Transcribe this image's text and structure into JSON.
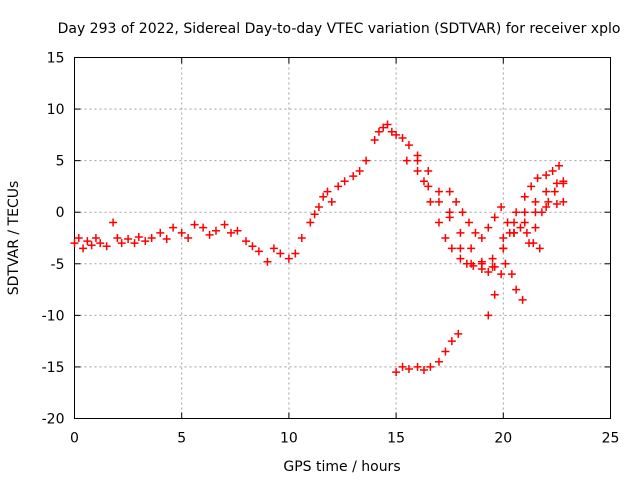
{
  "chart_data": {
    "type": "scatter",
    "title": "Day 293 of 2022, Sidereal Day-to-day VTEC variation (SDTVAR) for receiver xplo",
    "xlabel": "GPS time / hours",
    "ylabel": "SDTVAR / TECUs",
    "xlim": [
      0,
      25
    ],
    "ylim": [
      -20,
      15
    ],
    "x_ticks": [
      0,
      5,
      10,
      15,
      20,
      25
    ],
    "y_ticks": [
      -20,
      -15,
      -10,
      -5,
      0,
      5,
      10,
      15
    ],
    "grid": true,
    "marker": "+",
    "color": "#ff0000",
    "series": [
      {
        "name": "main-arc",
        "x": [
          0.0,
          0.2,
          0.4,
          0.6,
          0.8,
          1.0,
          1.2,
          1.5,
          1.8,
          2.0,
          2.2,
          2.5,
          2.8,
          3.0,
          3.3,
          3.6,
          4.0,
          4.3,
          4.6,
          5.0,
          5.3,
          5.6,
          6.0,
          6.3,
          6.6,
          7.0,
          7.3,
          7.6,
          8.0,
          8.3,
          8.6,
          9.0,
          9.3,
          9.6,
          10.0,
          10.3,
          10.6,
          11.0,
          11.2,
          11.4,
          11.6,
          11.8,
          12.0,
          12.3,
          12.6,
          13.0,
          13.3,
          13.6,
          14.0,
          14.2,
          14.4,
          14.6,
          14.8,
          15.0,
          15.3,
          15.6,
          16.0,
          16.3,
          16.6,
          17.0,
          17.3,
          17.6,
          18.0,
          18.3,
          18.6,
          19.0,
          19.3,
          19.6,
          20.0,
          20.3,
          20.6,
          21.0,
          21.3,
          21.6,
          22.0,
          22.3,
          22.6
        ],
        "y": [
          -3.0,
          -2.5,
          -3.5,
          -2.8,
          -3.2,
          -2.5,
          -3.0,
          -3.3,
          -1.0,
          -2.5,
          -3.0,
          -2.6,
          -3.0,
          -2.4,
          -2.8,
          -2.5,
          -2.0,
          -2.6,
          -1.5,
          -2.0,
          -2.5,
          -1.2,
          -1.5,
          -2.2,
          -1.8,
          -1.2,
          -2.0,
          -1.8,
          -2.8,
          -3.3,
          -3.8,
          -4.8,
          -3.5,
          -4.0,
          -4.5,
          -4.0,
          -2.5,
          -1.0,
          -0.2,
          0.5,
          1.5,
          2.0,
          1.0,
          2.5,
          3.0,
          3.5,
          4.0,
          5.0,
          7.0,
          7.8,
          8.2,
          8.5,
          7.8,
          7.5,
          7.2,
          6.5,
          5.0,
          3.0,
          1.0,
          -1.0,
          -2.5,
          -3.5,
          -4.5,
          -5.0,
          -5.2,
          -5.5,
          -5.8,
          -5.3,
          -3.5,
          -2.0,
          0.0,
          1.5,
          2.5,
          3.3,
          3.6,
          4.0,
          4.5
        ]
      },
      {
        "name": "dip-arc",
        "x": [
          15.5,
          16.0,
          16.5,
          17.0,
          17.5,
          18.0,
          18.5,
          19.0,
          19.5,
          20.0,
          20.5,
          21.0,
          21.5,
          22.0,
          22.5,
          22.8
        ],
        "y": [
          5.0,
          5.5,
          4.0,
          2.0,
          -0.5,
          -3.5,
          -5.0,
          -5.0,
          -4.5,
          -2.5,
          -1.0,
          0.0,
          1.0,
          2.0,
          2.8,
          3.0
        ]
      },
      {
        "name": "secondary-arc",
        "x": [
          16.0,
          16.5,
          17.0,
          17.5,
          18.0,
          18.5,
          19.0,
          19.5,
          20.0,
          20.5,
          21.0,
          21.5,
          22.0,
          22.5,
          22.8
        ],
        "y": [
          4.0,
          2.5,
          1.0,
          0.0,
          -2.0,
          -3.5,
          -4.8,
          -5.3,
          -3.5,
          -2.0,
          -1.0,
          0.0,
          0.5,
          0.8,
          1.0
        ]
      },
      {
        "name": "v-arc",
        "x": [
          17.5,
          17.8,
          18.1,
          18.4,
          18.7,
          19.0,
          19.3,
          19.6,
          19.9,
          20.2,
          20.5,
          20.8,
          21.1,
          21.4,
          21.7
        ],
        "y": [
          2.0,
          1.0,
          0.0,
          -1.0,
          -2.0,
          -2.5,
          -1.5,
          -0.5,
          0.5,
          -1.0,
          -2.0,
          -1.5,
          -2.0,
          -3.0,
          -3.5
        ]
      },
      {
        "name": "descending-arc",
        "x": [
          19.3,
          19.6,
          19.9,
          20.1,
          20.4,
          20.6,
          20.9,
          21.2,
          21.5,
          21.8,
          22.1,
          22.4,
          22.8
        ],
        "y": [
          -10.0,
          -8.0,
          -6.0,
          -5.0,
          -6.0,
          -7.5,
          -8.5,
          -3.0,
          -1.5,
          0.0,
          1.0,
          2.0,
          2.8
        ]
      },
      {
        "name": "lower-arc",
        "x": [
          15.0,
          15.3,
          15.6,
          16.0,
          16.3,
          16.6,
          17.0,
          17.3,
          17.6,
          17.9
        ],
        "y": [
          -15.5,
          -15.0,
          -15.2,
          -15.0,
          -15.3,
          -15.0,
          -14.5,
          -13.5,
          -12.5,
          -11.8
        ]
      }
    ]
  }
}
